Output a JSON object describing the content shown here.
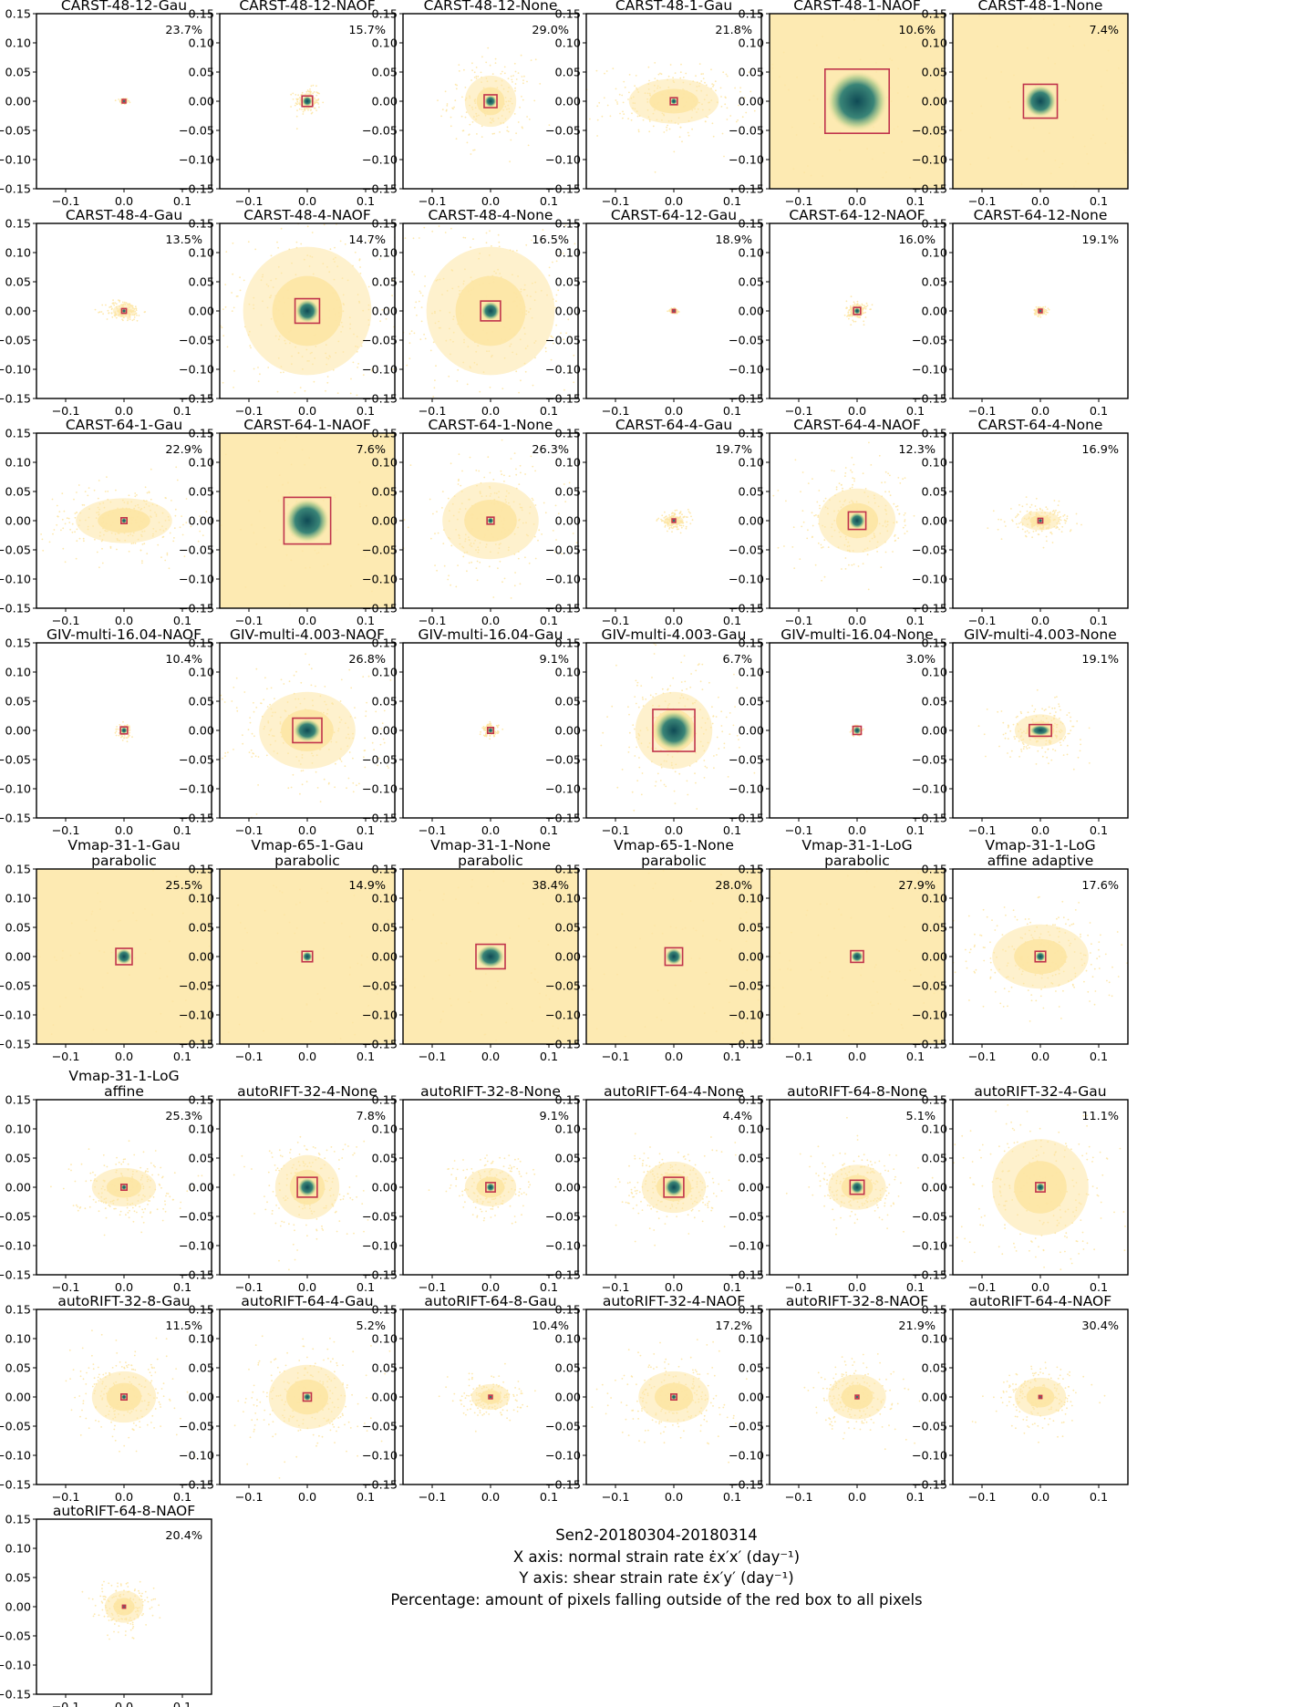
{
  "caption": {
    "line1": "Sen2-20180304-20180314",
    "line2": "X axis: normal strain rate ε̇x′x′ (day⁻¹)",
    "line3": "Y axis: shear strain rate ε̇x′y′ (day⁻¹)",
    "line4": "Percentage: amount of pixels falling outside of the red box to all pixels"
  },
  "colors": {
    "scatter": "#fde6a4",
    "core": "#0f4a55",
    "box": "#c0344c"
  },
  "chart_data": {
    "type": "scatter",
    "xlim": [
      -0.15,
      0.15
    ],
    "ylim": [
      -0.15,
      0.15
    ],
    "xticks": [
      -0.1,
      0.0,
      0.1
    ],
    "yticks": [
      0.15,
      0.1,
      0.05,
      0.0,
      -0.05,
      -0.1,
      -0.15
    ],
    "xtick_labels": [
      "−0.1",
      "0.0",
      "0.1"
    ],
    "ytick_labels": [
      "0.15",
      "0.10",
      "0.05",
      "0.00",
      "−0.05",
      "−0.10",
      "−0.15"
    ],
    "grid": false,
    "panels": [
      {
        "title": [
          "CARST-48-12-Gau"
        ],
        "percent": "23.7%",
        "box_half_width": 0.003,
        "box_half_height": 0.003,
        "spread_x": 0.008,
        "spread_y": 0.006
      },
      {
        "title": [
          "CARST-48-12-NAOF"
        ],
        "percent": "15.7%",
        "box_half_width": 0.009,
        "box_half_height": 0.009,
        "spread_x": 0.025,
        "spread_y": 0.025
      },
      {
        "title": [
          "CARST-48-12-None"
        ],
        "percent": "29.0%",
        "box_half_width": 0.011,
        "box_half_height": 0.011,
        "spread_x": 0.08,
        "spread_y": 0.08
      },
      {
        "title": [
          "CARST-48-1-Gau"
        ],
        "percent": "21.8%",
        "box_half_width": 0.006,
        "box_half_height": 0.006,
        "spread_x": 0.14,
        "spread_y": 0.07
      },
      {
        "title": [
          "CARST-48-1-NAOF"
        ],
        "percent": "10.6%",
        "box_half_width": 0.055,
        "box_half_height": 0.055,
        "spread_x": 0.3,
        "spread_y": 0.3
      },
      {
        "title": [
          "CARST-48-1-None"
        ],
        "percent": "7.4%",
        "box_half_width": 0.029,
        "box_half_height": 0.029,
        "spread_x": 0.3,
        "spread_y": 0.3
      },
      {
        "title": [
          "CARST-48-4-Gau"
        ],
        "percent": "13.5%",
        "box_half_width": 0.004,
        "box_half_height": 0.004,
        "spread_x": 0.035,
        "spread_y": 0.02
      },
      {
        "title": [
          "CARST-48-4-NAOF"
        ],
        "percent": "14.7%",
        "box_half_width": 0.021,
        "box_half_height": 0.021,
        "spread_x": 0.2,
        "spread_y": 0.2
      },
      {
        "title": [
          "CARST-48-4-None"
        ],
        "percent": "16.5%",
        "box_half_width": 0.017,
        "box_half_height": 0.017,
        "spread_x": 0.2,
        "spread_y": 0.2
      },
      {
        "title": [
          "CARST-64-12-Gau"
        ],
        "percent": "18.9%",
        "box_half_width": 0.002,
        "box_half_height": 0.002,
        "spread_x": 0.008,
        "spread_y": 0.004
      },
      {
        "title": [
          "CARST-64-12-NAOF"
        ],
        "percent": "16.0%",
        "box_half_width": 0.006,
        "box_half_height": 0.006,
        "spread_x": 0.02,
        "spread_y": 0.02
      },
      {
        "title": [
          "CARST-64-12-None"
        ],
        "percent": "19.1%",
        "box_half_width": 0.003,
        "box_half_height": 0.003,
        "spread_x": 0.012,
        "spread_y": 0.008
      },
      {
        "title": [
          "CARST-64-1-Gau"
        ],
        "percent": "22.9%",
        "box_half_width": 0.005,
        "box_half_height": 0.005,
        "spread_x": 0.15,
        "spread_y": 0.07
      },
      {
        "title": [
          "CARST-64-1-NAOF"
        ],
        "percent": "7.6%",
        "box_half_width": 0.04,
        "box_half_height": 0.04,
        "spread_x": 0.3,
        "spread_y": 0.3
      },
      {
        "title": [
          "CARST-64-1-None"
        ],
        "percent": "26.3%",
        "box_half_width": 0.006,
        "box_half_height": 0.006,
        "spread_x": 0.15,
        "spread_y": 0.12
      },
      {
        "title": [
          "CARST-64-4-Gau"
        ],
        "percent": "19.7%",
        "box_half_width": 0.003,
        "box_half_height": 0.003,
        "spread_x": 0.03,
        "spread_y": 0.015
      },
      {
        "title": [
          "CARST-64-4-NAOF"
        ],
        "percent": "12.3%",
        "box_half_width": 0.015,
        "box_half_height": 0.015,
        "spread_x": 0.12,
        "spread_y": 0.1
      },
      {
        "title": [
          "CARST-64-4-None"
        ],
        "percent": "16.9%",
        "box_half_width": 0.004,
        "box_half_height": 0.004,
        "spread_x": 0.06,
        "spread_y": 0.03
      },
      {
        "title": [
          "GIV-multi-16.04-NAOF"
        ],
        "percent": "10.4%",
        "box_half_width": 0.006,
        "box_half_height": 0.006,
        "spread_x": 0.012,
        "spread_y": 0.012
      },
      {
        "title": [
          "GIV-multi-4.003-NAOF"
        ],
        "percent": "26.8%",
        "box_half_width": 0.025,
        "box_half_height": 0.021,
        "spread_x": 0.15,
        "spread_y": 0.12
      },
      {
        "title": [
          "GIV-multi-16.04-Gau"
        ],
        "percent": "9.1%",
        "box_half_width": 0.005,
        "box_half_height": 0.005,
        "spread_x": 0.015,
        "spread_y": 0.012
      },
      {
        "title": [
          "GIV-multi-4.003-Gau"
        ],
        "percent": "6.7%",
        "box_half_width": 0.036,
        "box_half_height": 0.036,
        "spread_x": 0.12,
        "spread_y": 0.12
      },
      {
        "title": [
          "GIV-multi-16.04-None"
        ],
        "percent": "3.0%",
        "box_half_width": 0.007,
        "box_half_height": 0.007,
        "spread_x": 0.01,
        "spread_y": 0.01
      },
      {
        "title": [
          "GIV-multi-4.003-None"
        ],
        "percent": "19.1%",
        "box_half_width": 0.019,
        "box_half_height": 0.01,
        "spread_x": 0.08,
        "spread_y": 0.05
      },
      {
        "title": [
          "Vmap-31-1-Gau",
          "parabolic"
        ],
        "percent": "25.5%",
        "box_half_width": 0.014,
        "box_half_height": 0.014,
        "spread_x": 0.3,
        "spread_y": 0.3
      },
      {
        "title": [
          "Vmap-65-1-Gau",
          "parabolic"
        ],
        "percent": "14.9%",
        "box_half_width": 0.009,
        "box_half_height": 0.009,
        "spread_x": 0.3,
        "spread_y": 0.3
      },
      {
        "title": [
          "Vmap-31-1-None",
          "parabolic"
        ],
        "percent": "38.4%",
        "box_half_width": 0.025,
        "box_half_height": 0.021,
        "spread_x": 0.3,
        "spread_y": 0.3
      },
      {
        "title": [
          "Vmap-65-1-None",
          "parabolic"
        ],
        "percent": "28.0%",
        "box_half_width": 0.015,
        "box_half_height": 0.015,
        "spread_x": 0.3,
        "spread_y": 0.3
      },
      {
        "title": [
          "Vmap-31-1-LoG",
          "parabolic"
        ],
        "percent": "27.9%",
        "box_half_width": 0.011,
        "box_half_height": 0.01,
        "spread_x": 0.3,
        "spread_y": 0.3
      },
      {
        "title": [
          "Vmap-31-1-LoG",
          "affine adaptive"
        ],
        "percent": "17.6%",
        "box_half_width": 0.009,
        "box_half_height": 0.009,
        "spread_x": 0.15,
        "spread_y": 0.1
      },
      {
        "title": [
          "Vmap-31-1-LoG",
          "affine"
        ],
        "percent": "25.3%",
        "box_half_width": 0.005,
        "box_half_height": 0.005,
        "spread_x": 0.1,
        "spread_y": 0.06
      },
      {
        "title": [
          "autoRIFT-32-4-None"
        ],
        "percent": "7.8%",
        "box_half_width": 0.017,
        "box_half_height": 0.017,
        "spread_x": 0.1,
        "spread_y": 0.1
      },
      {
        "title": [
          "autoRIFT-32-8-None"
        ],
        "percent": "9.1%",
        "box_half_width": 0.008,
        "box_half_height": 0.008,
        "spread_x": 0.08,
        "spread_y": 0.06
      },
      {
        "title": [
          "autoRIFT-64-4-None"
        ],
        "percent": "4.4%",
        "box_half_width": 0.017,
        "box_half_height": 0.017,
        "spread_x": 0.1,
        "spread_y": 0.08
      },
      {
        "title": [
          "autoRIFT-64-8-None"
        ],
        "percent": "5.1%",
        "box_half_width": 0.012,
        "box_half_height": 0.012,
        "spread_x": 0.09,
        "spread_y": 0.07
      },
      {
        "title": [
          "autoRIFT-32-4-Gau"
        ],
        "percent": "11.1%",
        "box_half_width": 0.008,
        "box_half_height": 0.008,
        "spread_x": 0.15,
        "spread_y": 0.15
      },
      {
        "title": [
          "autoRIFT-32-8-Gau"
        ],
        "percent": "11.5%",
        "box_half_width": 0.005,
        "box_half_height": 0.005,
        "spread_x": 0.1,
        "spread_y": 0.08
      },
      {
        "title": [
          "autoRIFT-64-4-Gau"
        ],
        "percent": "5.2%",
        "box_half_width": 0.007,
        "box_half_height": 0.007,
        "spread_x": 0.12,
        "spread_y": 0.1
      },
      {
        "title": [
          "autoRIFT-64-8-Gau"
        ],
        "percent": "10.4%",
        "box_half_width": 0.003,
        "box_half_height": 0.003,
        "spread_x": 0.06,
        "spread_y": 0.04
      },
      {
        "title": [
          "autoRIFT-32-4-NAOF"
        ],
        "percent": "17.2%",
        "box_half_width": 0.005,
        "box_half_height": 0.005,
        "spread_x": 0.11,
        "spread_y": 0.08
      },
      {
        "title": [
          "autoRIFT-32-8-NAOF"
        ],
        "percent": "21.9%",
        "box_half_width": 0.003,
        "box_half_height": 0.003,
        "spread_x": 0.09,
        "spread_y": 0.07
      },
      {
        "title": [
          "autoRIFT-64-4-NAOF"
        ],
        "percent": "30.4%",
        "box_half_width": 0.002,
        "box_half_height": 0.002,
        "spread_x": 0.08,
        "spread_y": 0.06
      },
      {
        "title": [
          "autoRIFT-64-8-NAOF"
        ],
        "percent": "20.4%",
        "box_half_width": 0.002,
        "box_half_height": 0.002,
        "spread_x": 0.06,
        "spread_y": 0.05
      }
    ]
  }
}
